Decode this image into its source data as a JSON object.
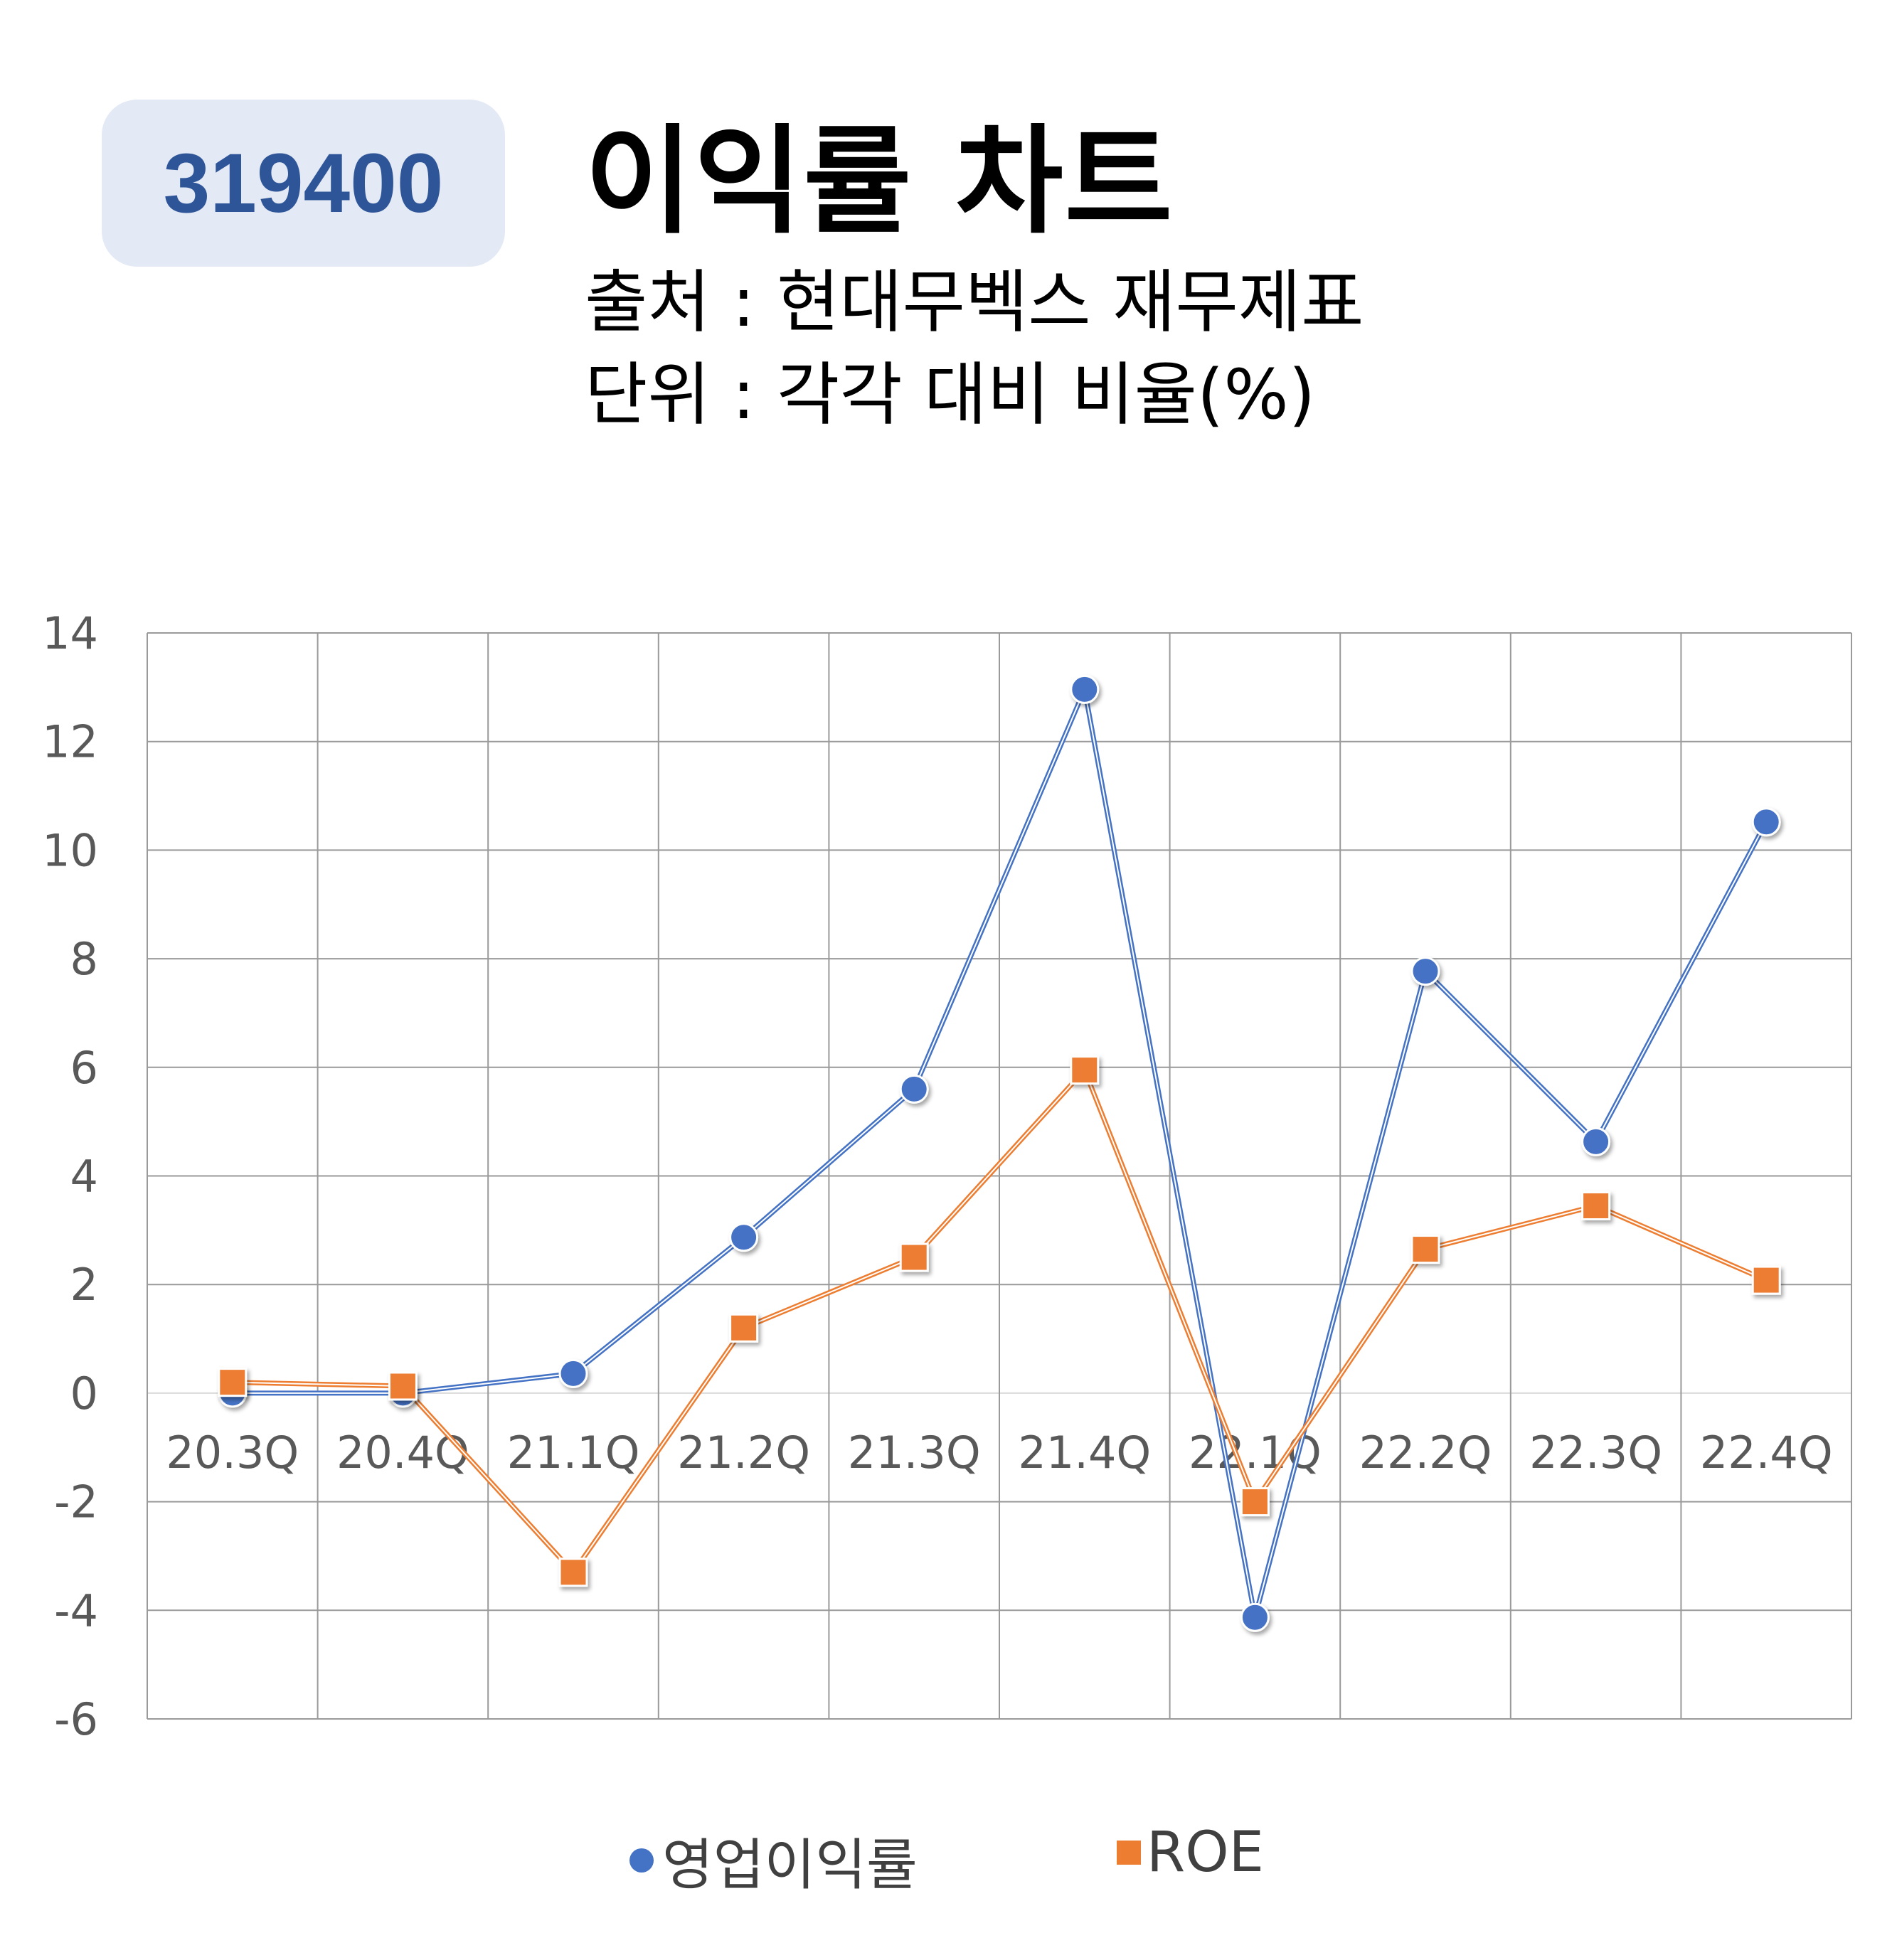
{
  "header": {
    "code": "319400",
    "title": "이익률 차트",
    "source_line": "출처 : 현대무벡스 재무제표",
    "unit_line": "단위 : 각각 대비 비율(%)"
  },
  "colors": {
    "series_1": "#4472c4",
    "series_2": "#ed7d31",
    "grid": "#9a9a9a",
    "badge_bg": "#e3e9f5",
    "badge_text": "#2e5597"
  },
  "chart_data": {
    "type": "line",
    "categories": [
      "20.3Q",
      "20.4Q",
      "21.1Q",
      "21.2Q",
      "21.3Q",
      "21.4Q",
      "22.1Q",
      "22.2Q",
      "22.3Q",
      "22.4Q"
    ],
    "series": [
      {
        "name": "영업이익률",
        "marker": "circle",
        "values": [
          0.0,
          0.0,
          0.36,
          2.87,
          5.6,
          12.96,
          -4.13,
          7.77,
          4.63,
          10.52
        ]
      },
      {
        "name": "ROE",
        "marker": "square",
        "values": [
          0.2,
          0.13,
          -3.3,
          1.2,
          2.5,
          5.95,
          -2.0,
          2.65,
          3.45,
          2.08
        ]
      }
    ],
    "ylim": [
      -6,
      14
    ],
    "yticks": [
      -6,
      -4,
      -2,
      0,
      2,
      4,
      6,
      8,
      10,
      12,
      14
    ],
    "grid": true,
    "legend_position": "bottom"
  }
}
